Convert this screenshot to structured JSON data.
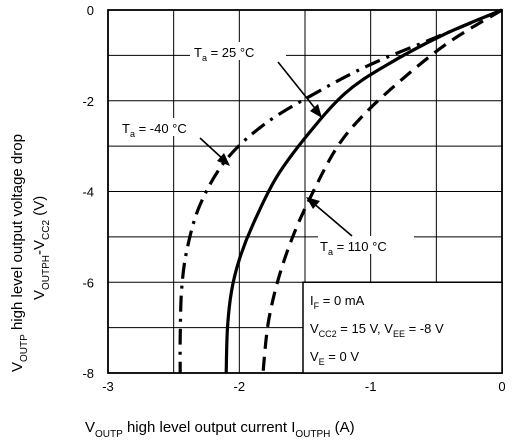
{
  "chart_data": {
    "type": "line",
    "xlim": [
      -3,
      0
    ],
    "ylim": [
      -8,
      0
    ],
    "grid": true,
    "x_ticks": [
      "-3",
      "-2",
      "-1",
      "0"
    ],
    "y_ticks": [
      "0",
      "-2",
      "-4",
      "-6",
      "-8"
    ],
    "xlabel": {
      "main": "V",
      "main_sub": "OUTP",
      "text": " high level output current  I",
      "text_sub": "OUTPH",
      "unit": "  (A)"
    },
    "ylabel": {
      "main": "V",
      "main_sub": "OUTP",
      "text": " high level output voltage drop",
      "line2_main": "V",
      "line2_sub": "OUTPH",
      "line2_mid": "-V",
      "line2_sub2": "CC2",
      "unit": "  (V)"
    },
    "series": [
      {
        "label_pre": "T",
        "label_sub": "a",
        "label_post": " = 25 °C",
        "style": "solid",
        "points": [
          [
            0,
            0
          ],
          [
            -0.45,
            -0.55
          ],
          [
            -0.9,
            -1.25
          ],
          [
            -1.2,
            -1.85
          ],
          [
            -1.48,
            -2.75
          ],
          [
            -1.72,
            -3.7
          ],
          [
            -1.9,
            -4.75
          ],
          [
            -2.0,
            -5.5
          ],
          [
            -2.06,
            -6.2
          ],
          [
            -2.09,
            -7.0
          ],
          [
            -2.1,
            -8.0
          ]
        ]
      },
      {
        "label_pre": "T",
        "label_sub": "a",
        "label_post": " = -40 °C",
        "style": "dashdot",
        "points": [
          [
            0,
            0
          ],
          [
            -0.5,
            -0.6
          ],
          [
            -1.0,
            -1.2
          ],
          [
            -1.4,
            -1.8
          ],
          [
            -1.8,
            -2.5
          ],
          [
            -2.1,
            -3.3
          ],
          [
            -2.3,
            -4.3
          ],
          [
            -2.4,
            -5.3
          ],
          [
            -2.44,
            -6.2
          ],
          [
            -2.45,
            -7.2
          ],
          [
            -2.45,
            -8.0
          ]
        ]
      },
      {
        "label_pre": "T",
        "label_sub": "a",
        "label_post": " = 110 °C",
        "style": "dashed",
        "points": [
          [
            0,
            0
          ],
          [
            -0.4,
            -0.7
          ],
          [
            -0.75,
            -1.5
          ],
          [
            -1.05,
            -2.3
          ],
          [
            -1.25,
            -3.0
          ],
          [
            -1.42,
            -3.9
          ],
          [
            -1.58,
            -4.9
          ],
          [
            -1.7,
            -5.9
          ],
          [
            -1.78,
            -6.9
          ],
          [
            -1.82,
            -8.0
          ]
        ]
      }
    ],
    "conditions": [
      {
        "pre": "I",
        "sub": "F",
        "post": " = 0 mA"
      },
      {
        "pre": "V",
        "sub": "CC2",
        "post": " = 15 V, V",
        "sub2": "EE",
        "post2": " = -8 V"
      },
      {
        "pre": "V",
        "sub": "E",
        "post": " = 0 V"
      }
    ]
  }
}
